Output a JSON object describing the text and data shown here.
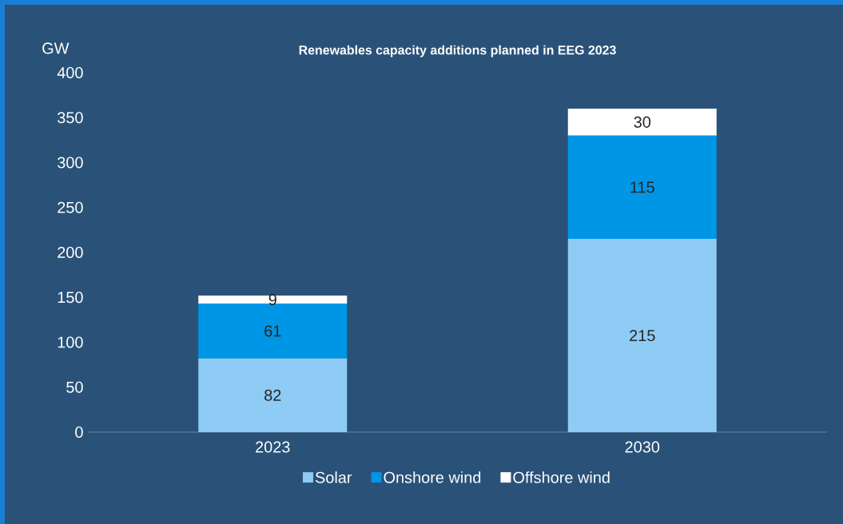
{
  "chart_data": {
    "type": "bar",
    "title": "Renewables capacity additions planned in EEG 2023",
    "ylabel": "GW",
    "categories": [
      "2023",
      "2030"
    ],
    "stacked": true,
    "ylim": [
      0,
      400
    ],
    "yticks": [
      0,
      50,
      100,
      150,
      200,
      250,
      300,
      350,
      400
    ],
    "legend": "bottom",
    "series": [
      {
        "name": "Solar",
        "color": "#8ecbf5",
        "values": [
          82,
          215
        ],
        "value_labels": [
          "82",
          "215"
        ]
      },
      {
        "name": "Onshore wind",
        "color": "#0096e6",
        "values": [
          61,
          115
        ],
        "value_labels": [
          "61",
          "115"
        ]
      },
      {
        "name": "Offshore wind",
        "color": "#ffffff",
        "values": [
          9,
          30
        ],
        "value_labels": [
          "9",
          "30"
        ]
      }
    ]
  }
}
